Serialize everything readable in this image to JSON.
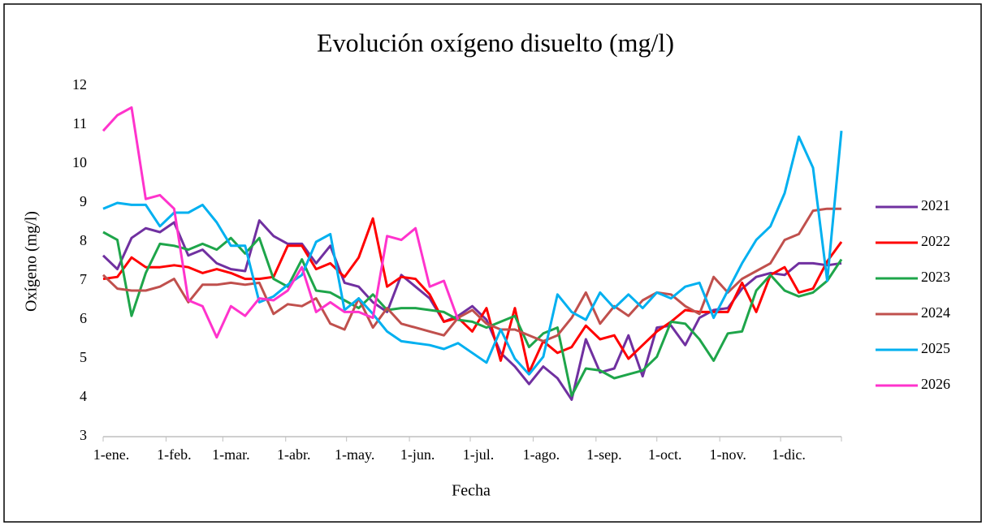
{
  "chart_data": {
    "type": "line",
    "title": "Evolución oxígeno disuelto (mg/l)",
    "x_label": "Fecha",
    "y_label": "Oxígeno (mg/l)",
    "x": [
      0,
      7,
      14,
      21,
      28,
      35,
      42,
      49,
      56,
      63,
      70,
      77,
      84,
      91,
      98,
      105,
      112,
      119,
      126,
      133,
      140,
      147,
      154,
      161,
      168,
      175,
      182,
      189,
      196,
      203,
      210,
      217,
      224,
      231,
      238,
      245,
      252,
      259,
      266,
      273,
      280,
      287,
      294,
      301,
      308,
      315,
      322,
      329,
      336,
      343,
      350,
      357,
      364
    ],
    "xlim": [
      0,
      364
    ],
    "xticks": [
      {
        "value": 0,
        "label": "1-ene."
      },
      {
        "value": 31,
        "label": "1-feb."
      },
      {
        "value": 59,
        "label": "1-mar."
      },
      {
        "value": 90,
        "label": "1-abr."
      },
      {
        "value": 120,
        "label": "1-may."
      },
      {
        "value": 151,
        "label": "1-jun."
      },
      {
        "value": 181,
        "label": "1-jul."
      },
      {
        "value": 212,
        "label": "1-ago."
      },
      {
        "value": 243,
        "label": "1-sep."
      },
      {
        "value": 273,
        "label": "1-oct."
      },
      {
        "value": 304,
        "label": "1-nov."
      },
      {
        "value": 334,
        "label": "1-dic."
      }
    ],
    "ylim": [
      3,
      12
    ],
    "yticks": [
      3,
      4,
      5,
      6,
      7,
      8,
      9,
      10,
      11,
      12
    ],
    "grid": false,
    "legend": "right",
    "series": [
      {
        "name": "2021",
        "color": "#7030a0",
        "values": [
          7.65,
          7.3,
          8.1,
          8.35,
          8.25,
          8.5,
          7.65,
          7.8,
          7.45,
          7.3,
          7.25,
          8.55,
          8.15,
          7.95,
          7.95,
          7.45,
          7.9,
          6.95,
          6.85,
          6.45,
          6.2,
          7.15,
          6.85,
          6.55,
          5.95,
          6.1,
          6.35,
          6.0,
          5.15,
          4.8,
          4.35,
          4.8,
          4.5,
          3.95,
          5.5,
          4.65,
          4.75,
          5.6,
          4.55,
          5.8,
          5.85,
          5.35,
          6.05,
          6.25,
          6.3,
          6.8,
          7.1,
          7.2,
          7.15,
          7.45,
          7.45,
          7.4,
          7.45
        ]
      },
      {
        "name": "2022",
        "color": "#ff0000",
        "values": [
          7.05,
          7.1,
          7.6,
          7.35,
          7.35,
          7.4,
          7.35,
          7.2,
          7.3,
          7.2,
          7.05,
          7.05,
          7.1,
          7.9,
          7.9,
          7.3,
          7.45,
          7.1,
          7.6,
          8.6,
          6.85,
          7.1,
          7.05,
          6.65,
          5.95,
          6.05,
          5.7,
          6.3,
          4.95,
          6.3,
          4.65,
          5.45,
          5.15,
          5.3,
          5.85,
          5.5,
          5.6,
          5.0,
          5.35,
          5.7,
          5.95,
          6.25,
          6.2,
          6.2,
          6.2,
          6.95,
          6.2,
          7.15,
          7.35,
          6.7,
          6.8,
          7.5,
          8.0
        ]
      },
      {
        "name": "2023",
        "color": "#1ea54a",
        "values": [
          8.25,
          8.05,
          6.1,
          7.2,
          7.95,
          7.9,
          7.8,
          7.95,
          7.8,
          8.1,
          7.7,
          8.1,
          7.05,
          6.85,
          7.55,
          6.75,
          6.7,
          6.5,
          6.3,
          6.65,
          6.25,
          6.3,
          6.3,
          6.25,
          6.2,
          6.0,
          5.95,
          5.8,
          5.95,
          6.1,
          5.3,
          5.65,
          5.8,
          4.05,
          4.75,
          4.7,
          4.5,
          4.6,
          4.7,
          5.05,
          5.95,
          5.9,
          5.5,
          4.95,
          5.65,
          5.7,
          6.75,
          7.15,
          6.75,
          6.6,
          6.7,
          7.0,
          7.55
        ]
      },
      {
        "name": "2024",
        "color": "#c0504d",
        "values": [
          7.15,
          6.8,
          6.75,
          6.75,
          6.85,
          7.05,
          6.45,
          6.9,
          6.9,
          6.95,
          6.9,
          6.95,
          6.15,
          6.4,
          6.35,
          6.55,
          5.9,
          5.75,
          6.55,
          5.8,
          6.3,
          5.9,
          5.8,
          5.7,
          5.6,
          6.05,
          6.25,
          5.9,
          5.75,
          5.75,
          5.6,
          5.45,
          5.6,
          6.05,
          6.7,
          5.9,
          6.35,
          6.1,
          6.5,
          6.7,
          6.65,
          6.35,
          6.15,
          7.1,
          6.7,
          7.05,
          7.25,
          7.45,
          8.05,
          8.2,
          8.8,
          8.85,
          8.85
        ]
      },
      {
        "name": "2025",
        "color": "#00b0f0",
        "values": [
          8.85,
          9.0,
          8.95,
          8.95,
          8.4,
          8.75,
          8.75,
          8.95,
          8.5,
          7.9,
          7.9,
          6.45,
          6.6,
          6.9,
          7.15,
          8.0,
          8.2,
          6.25,
          6.55,
          6.15,
          5.7,
          5.45,
          5.4,
          5.35,
          5.25,
          5.4,
          5.15,
          4.9,
          5.75,
          5.0,
          4.6,
          5.05,
          6.65,
          6.2,
          6.0,
          6.7,
          6.3,
          6.65,
          6.3,
          6.7,
          6.55,
          6.85,
          6.95,
          6.05,
          6.75,
          7.45,
          8.05,
          8.4,
          9.25,
          10.7,
          9.9,
          7.0,
          10.85
        ]
      },
      {
        "name": "2026",
        "color": "#ff33cc",
        "values": [
          10.85,
          11.25,
          11.45,
          9.1,
          9.2,
          8.85,
          6.5,
          6.35,
          5.55,
          6.35,
          6.1,
          6.55,
          6.5,
          6.75,
          7.35,
          6.2,
          6.45,
          6.2,
          6.2,
          6.05,
          8.15,
          8.05,
          8.35,
          6.85,
          7.0,
          6.0,
          null,
          null,
          null,
          null,
          null,
          null,
          null,
          null,
          null,
          null,
          null,
          null,
          null,
          null,
          null,
          null,
          null,
          null,
          null,
          null,
          null,
          null,
          null,
          null,
          null,
          null,
          null
        ]
      }
    ]
  }
}
